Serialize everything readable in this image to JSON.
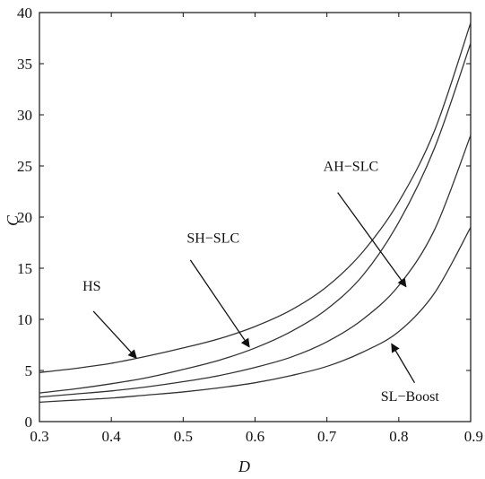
{
  "chart_data": {
    "type": "line",
    "xlabel": "D",
    "ylabel": "C",
    "xlim": [
      0.3,
      0.9
    ],
    "ylim": [
      0,
      40
    ],
    "xticks": [
      "0.3",
      "0.4",
      "0.5",
      "0.6",
      "0.7",
      "0.8",
      "0.9"
    ],
    "yticks": [
      "0",
      "5",
      "10",
      "15",
      "20",
      "25",
      "30",
      "35",
      "40"
    ],
    "grid": false,
    "line_color": "#333333",
    "series": [
      {
        "name": "HS",
        "x": [
          0.3,
          0.35,
          0.4,
          0.45,
          0.5,
          0.55,
          0.6,
          0.65,
          0.7,
          0.75,
          0.8,
          0.85,
          0.9
        ],
        "y": [
          4.8,
          5.2,
          5.7,
          6.4,
          7.2,
          8.1,
          9.3,
          10.9,
          13.2,
          16.6,
          21.5,
          28.5,
          39.0
        ]
      },
      {
        "name": "SH-SLC",
        "x": [
          0.3,
          0.35,
          0.4,
          0.45,
          0.5,
          0.55,
          0.6,
          0.65,
          0.7,
          0.75,
          0.8,
          0.85,
          0.9
        ],
        "y": [
          2.8,
          3.2,
          3.7,
          4.3,
          5.1,
          6.0,
          7.2,
          8.8,
          11.0,
          14.3,
          19.5,
          26.8,
          37.0
        ]
      },
      {
        "name": "AH-SLC",
        "x": [
          0.3,
          0.35,
          0.4,
          0.45,
          0.5,
          0.55,
          0.6,
          0.65,
          0.7,
          0.75,
          0.8,
          0.85,
          0.9
        ],
        "y": [
          2.4,
          2.7,
          3.0,
          3.4,
          3.9,
          4.5,
          5.3,
          6.3,
          7.8,
          10.0,
          13.3,
          18.8,
          28.0
        ]
      },
      {
        "name": "SL-Boost",
        "x": [
          0.3,
          0.35,
          0.4,
          0.45,
          0.5,
          0.55,
          0.6,
          0.65,
          0.7,
          0.75,
          0.8,
          0.85,
          0.9
        ],
        "y": [
          1.9,
          2.1,
          2.3,
          2.6,
          2.9,
          3.3,
          3.8,
          4.5,
          5.4,
          6.8,
          8.8,
          12.6,
          19.0
        ]
      }
    ],
    "annotations": [
      {
        "label": "HS",
        "label_at": [
          0.36,
          12.8
        ],
        "arrow_from": [
          0.375,
          10.8
        ],
        "arrow_to": [
          0.435,
          6.2
        ]
      },
      {
        "label": "SH-SLC",
        "label_at": [
          0.505,
          17.5
        ],
        "arrow_from": [
          0.51,
          15.8
        ],
        "arrow_to": [
          0.592,
          7.3
        ]
      },
      {
        "label": "AH-SLC",
        "label_at": [
          0.695,
          24.5
        ],
        "arrow_from": [
          0.715,
          22.4
        ],
        "arrow_to": [
          0.81,
          13.2
        ]
      },
      {
        "label": "SL-Boost",
        "label_at": [
          0.775,
          2.0
        ],
        "arrow_from": [
          0.822,
          3.8
        ],
        "arrow_to": [
          0.79,
          7.6
        ]
      }
    ]
  }
}
